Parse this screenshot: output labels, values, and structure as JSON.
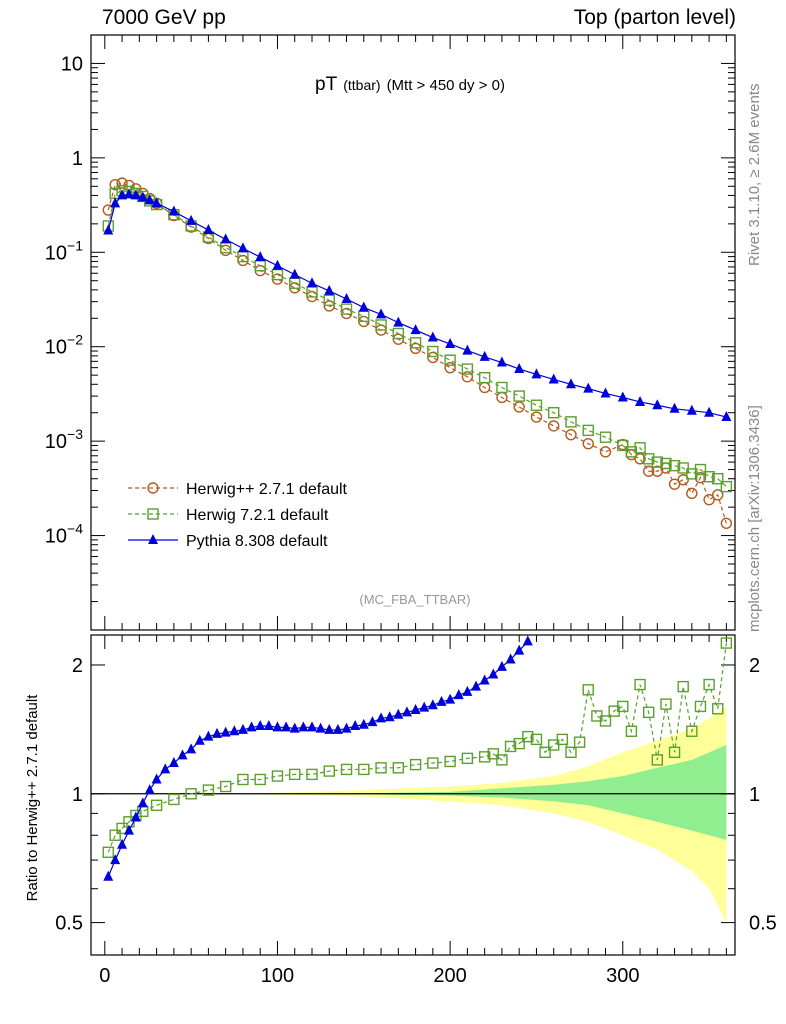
{
  "header": {
    "left": "7000 GeV pp",
    "right": "Top (parton level)"
  },
  "side_labels": {
    "rivet": "Rivet 3.1.10, ≥ 2.6M events",
    "mcplots": "mcplots.cern.ch [arXiv:1306.3436]"
  },
  "chart_data": [
    {
      "type": "line",
      "title_main": "pT",
      "title_sub": "(ttbar)",
      "title_cond": "(Mtt > 450 dy > 0)",
      "watermark": "(MC_FBA_TTBAR)",
      "x_scale": "linear",
      "y_scale": "log",
      "xlim": [
        -8,
        365
      ],
      "ylim": [
        1e-05,
        20
      ],
      "y_ticks": [
        {
          "value": 10,
          "base": "10",
          "exp": ""
        },
        {
          "value": 1,
          "base": "1",
          "exp": ""
        },
        {
          "value": 0.1,
          "base": "10",
          "exp": "−1"
        },
        {
          "value": 0.01,
          "base": "10",
          "exp": "−2"
        },
        {
          "value": 0.001,
          "base": "10",
          "exp": "−3"
        },
        {
          "value": 0.0001,
          "base": "10",
          "exp": "−4"
        }
      ],
      "legend_position": "bottom-left",
      "series": [
        {
          "name": "Herwig++ 2.7.1 default",
          "color": "#b35a1f",
          "marker": "open-circle",
          "line": "dashed",
          "points": [
            [
              2,
              0.28
            ],
            [
              6,
              0.52
            ],
            [
              10,
              0.54
            ],
            [
              14,
              0.51
            ],
            [
              18,
              0.47
            ],
            [
              22,
              0.42
            ],
            [
              26,
              0.37
            ],
            [
              30,
              0.33
            ],
            [
              40,
              0.245
            ],
            [
              50,
              0.185
            ],
            [
              60,
              0.14
            ],
            [
              70,
              0.105
            ],
            [
              80,
              0.082
            ],
            [
              90,
              0.064
            ],
            [
              100,
              0.052
            ],
            [
              110,
              0.042
            ],
            [
              120,
              0.034
            ],
            [
              130,
              0.027
            ],
            [
              140,
              0.0225
            ],
            [
              150,
              0.0185
            ],
            [
              160,
              0.015
            ],
            [
              170,
              0.012
            ],
            [
              180,
              0.0096
            ],
            [
              190,
              0.0077
            ],
            [
              200,
              0.006
            ],
            [
              210,
              0.0048
            ],
            [
              220,
              0.0037
            ],
            [
              230,
              0.0029
            ],
            [
              240,
              0.0023
            ],
            [
              250,
              0.0018
            ],
            [
              260,
              0.00145
            ],
            [
              270,
              0.00117
            ],
            [
              280,
              0.00094
            ],
            [
              290,
              0.00077
            ],
            [
              300,
              0.00092
            ],
            [
              305,
              0.00072
            ],
            [
              310,
              0.00065
            ],
            [
              315,
              0.00048
            ],
            [
              320,
              0.00048
            ],
            [
              325,
              0.00052
            ],
            [
              330,
              0.00035
            ],
            [
              335,
              0.00039
            ],
            [
              340,
              0.00028
            ],
            [
              345,
              0.00041
            ],
            [
              350,
              0.00024
            ],
            [
              355,
              0.00027
            ],
            [
              360,
              0.000135
            ]
          ]
        },
        {
          "name": "Herwig 7.2.1 default",
          "color": "#5aa02c",
          "marker": "open-square",
          "line": "dashed",
          "points": [
            [
              2,
              0.19
            ],
            [
              6,
              0.42
            ],
            [
              10,
              0.45
            ],
            [
              14,
              0.44
            ],
            [
              18,
              0.42
            ],
            [
              22,
              0.39
            ],
            [
              26,
              0.35
            ],
            [
              30,
              0.32
            ],
            [
              40,
              0.25
            ],
            [
              50,
              0.19
            ],
            [
              60,
              0.145
            ],
            [
              70,
              0.112
            ],
            [
              80,
              0.09
            ],
            [
              90,
              0.072
            ],
            [
              100,
              0.058
            ],
            [
              110,
              0.047
            ],
            [
              120,
              0.038
            ],
            [
              130,
              0.031
            ],
            [
              140,
              0.025
            ],
            [
              150,
              0.021
            ],
            [
              160,
              0.017
            ],
            [
              170,
              0.0138
            ],
            [
              180,
              0.011
            ],
            [
              190,
              0.0089
            ],
            [
              200,
              0.0072
            ],
            [
              210,
              0.0058
            ],
            [
              220,
              0.0047
            ],
            [
              230,
              0.0037
            ],
            [
              240,
              0.003
            ],
            [
              250,
              0.0024
            ],
            [
              260,
              0.002
            ],
            [
              270,
              0.0016
            ],
            [
              280,
              0.0013
            ],
            [
              290,
              0.0011
            ],
            [
              300,
              0.0009
            ],
            [
              305,
              0.00077
            ],
            [
              310,
              0.00085
            ],
            [
              315,
              0.00065
            ],
            [
              320,
              0.0006
            ],
            [
              325,
              0.00058
            ],
            [
              330,
              0.00055
            ],
            [
              335,
              0.00052
            ],
            [
              340,
              0.00045
            ],
            [
              345,
              0.0005
            ],
            [
              350,
              0.00042
            ],
            [
              355,
              0.0004
            ],
            [
              360,
              0.00033
            ]
          ]
        },
        {
          "name": "Pythia 8.308 default",
          "color": "#0000dd",
          "marker": "filled-triangle",
          "line": "solid",
          "points": [
            [
              2,
              0.17
            ],
            [
              6,
              0.33
            ],
            [
              10,
              0.4
            ],
            [
              14,
              0.41
            ],
            [
              18,
              0.4
            ],
            [
              22,
              0.38
            ],
            [
              26,
              0.355
            ],
            [
              30,
              0.33
            ],
            [
              40,
              0.27
            ],
            [
              50,
              0.215
            ],
            [
              60,
              0.172
            ],
            [
              70,
              0.137
            ],
            [
              80,
              0.11
            ],
            [
              90,
              0.089
            ],
            [
              100,
              0.072
            ],
            [
              110,
              0.058
            ],
            [
              120,
              0.047
            ],
            [
              130,
              0.039
            ],
            [
              140,
              0.032
            ],
            [
              150,
              0.026
            ],
            [
              160,
              0.022
            ],
            [
              170,
              0.018
            ],
            [
              180,
              0.015
            ],
            [
              190,
              0.0125
            ],
            [
              200,
              0.0107
            ],
            [
              210,
              0.0091
            ],
            [
              220,
              0.0078
            ],
            [
              230,
              0.0068
            ],
            [
              240,
              0.0058
            ],
            [
              250,
              0.0051
            ],
            [
              260,
              0.0045
            ],
            [
              270,
              0.004
            ],
            [
              280,
              0.0036
            ],
            [
              290,
              0.0032
            ],
            [
              300,
              0.0029
            ],
            [
              310,
              0.0026
            ],
            [
              320,
              0.0024
            ],
            [
              330,
              0.0022
            ],
            [
              340,
              0.0021
            ],
            [
              350,
              0.002
            ],
            [
              360,
              0.0018
            ]
          ]
        }
      ]
    },
    {
      "type": "line",
      "ylabel": "Ratio to Herwig++ 2.7.1 default",
      "x_scale": "linear",
      "y_scale": "log",
      "xlim": [
        -8,
        365
      ],
      "ylim": [
        0.42,
        2.35
      ],
      "x_ticks": [
        0,
        100,
        200,
        300
      ],
      "y_ticks": [
        0.5,
        1,
        2
      ],
      "reference_line": 1,
      "uncertainty_bands": {
        "inner_color": "#90ee90",
        "outer_color": "#ffff99",
        "x": [
          0,
          50,
          100,
          150,
          200,
          230,
          260,
          280,
          300,
          320,
          340,
          350,
          360
        ],
        "inner_lo": [
          1,
          1,
          1,
          0.997,
          0.99,
          0.98,
          0.96,
          0.94,
          0.9,
          0.86,
          0.82,
          0.8,
          0.78
        ],
        "inner_hi": [
          1,
          1,
          1,
          1.003,
          1.01,
          1.03,
          1.05,
          1.07,
          1.1,
          1.15,
          1.2,
          1.25,
          1.3
        ],
        "outer_lo": [
          1,
          1,
          0.995,
          0.985,
          0.96,
          0.94,
          0.9,
          0.86,
          0.8,
          0.74,
          0.66,
          0.6,
          0.5
        ],
        "outer_hi": [
          1,
          1,
          1.005,
          1.02,
          1.04,
          1.06,
          1.1,
          1.16,
          1.25,
          1.33,
          1.42,
          1.5,
          1.6
        ]
      },
      "series": [
        {
          "name": "Herwig 7.2.1 default",
          "color": "#5aa02c",
          "marker": "open-square",
          "line": "dashed",
          "points": [
            [
              2,
              0.73
            ],
            [
              6,
              0.8
            ],
            [
              10,
              0.83
            ],
            [
              14,
              0.86
            ],
            [
              18,
              0.89
            ],
            [
              22,
              0.91
            ],
            [
              30,
              0.94
            ],
            [
              40,
              0.97
            ],
            [
              50,
              1
            ],
            [
              60,
              1.02
            ],
            [
              70,
              1.04
            ],
            [
              80,
              1.08
            ],
            [
              90,
              1.08
            ],
            [
              100,
              1.1
            ],
            [
              110,
              1.11
            ],
            [
              120,
              1.11
            ],
            [
              130,
              1.13
            ],
            [
              140,
              1.14
            ],
            [
              150,
              1.14
            ],
            [
              160,
              1.15
            ],
            [
              170,
              1.15
            ],
            [
              180,
              1.17
            ],
            [
              190,
              1.18
            ],
            [
              200,
              1.19
            ],
            [
              210,
              1.21
            ],
            [
              220,
              1.22
            ],
            [
              225,
              1.24
            ],
            [
              230,
              1.2
            ],
            [
              235,
              1.29
            ],
            [
              240,
              1.31
            ],
            [
              245,
              1.36
            ],
            [
              250,
              1.34
            ],
            [
              255,
              1.25
            ],
            [
              260,
              1.3
            ],
            [
              265,
              1.34
            ],
            [
              270,
              1.25
            ],
            [
              275,
              1.32
            ],
            [
              280,
              1.75
            ],
            [
              285,
              1.52
            ],
            [
              290,
              1.48
            ],
            [
              295,
              1.56
            ],
            [
              300,
              1.6
            ],
            [
              305,
              1.4
            ],
            [
              310,
              1.8
            ],
            [
              315,
              1.55
            ],
            [
              320,
              1.2
            ],
            [
              325,
              1.62
            ],
            [
              330,
              1.25
            ],
            [
              335,
              1.78
            ],
            [
              340,
              1.4
            ],
            [
              345,
              1.6
            ],
            [
              350,
              1.8
            ],
            [
              355,
              1.58
            ],
            [
              360,
              2.25
            ]
          ]
        },
        {
          "name": "Pythia 8.308 default",
          "color": "#0000dd",
          "marker": "filled-triangle",
          "line": "solid",
          "points": [
            [
              2,
              0.64
            ],
            [
              6,
              0.7
            ],
            [
              10,
              0.76
            ],
            [
              14,
              0.82
            ],
            [
              18,
              0.88
            ],
            [
              22,
              0.95
            ],
            [
              26,
              1.02
            ],
            [
              30,
              1.08
            ],
            [
              35,
              1.14
            ],
            [
              40,
              1.18
            ],
            [
              45,
              1.23
            ],
            [
              50,
              1.27
            ],
            [
              55,
              1.33
            ],
            [
              60,
              1.36
            ],
            [
              65,
              1.38
            ],
            [
              70,
              1.39
            ],
            [
              75,
              1.4
            ],
            [
              80,
              1.41
            ],
            [
              85,
              1.43
            ],
            [
              90,
              1.44
            ],
            [
              95,
              1.44
            ],
            [
              100,
              1.43
            ],
            [
              105,
              1.43
            ],
            [
              110,
              1.42
            ],
            [
              115,
              1.43
            ],
            [
              120,
              1.43
            ],
            [
              125,
              1.42
            ],
            [
              130,
              1.41
            ],
            [
              135,
              1.41
            ],
            [
              140,
              1.42
            ],
            [
              145,
              1.44
            ],
            [
              150,
              1.45
            ],
            [
              155,
              1.47
            ],
            [
              160,
              1.5
            ],
            [
              165,
              1.51
            ],
            [
              170,
              1.53
            ],
            [
              175,
              1.55
            ],
            [
              180,
              1.57
            ],
            [
              185,
              1.59
            ],
            [
              190,
              1.61
            ],
            [
              195,
              1.64
            ],
            [
              200,
              1.66
            ],
            [
              205,
              1.7
            ],
            [
              210,
              1.73
            ],
            [
              215,
              1.78
            ],
            [
              220,
              1.84
            ],
            [
              225,
              1.9
            ],
            [
              230,
              1.98
            ],
            [
              235,
              2.06
            ],
            [
              240,
              2.16
            ],
            [
              245,
              2.27
            ]
          ]
        }
      ]
    }
  ]
}
